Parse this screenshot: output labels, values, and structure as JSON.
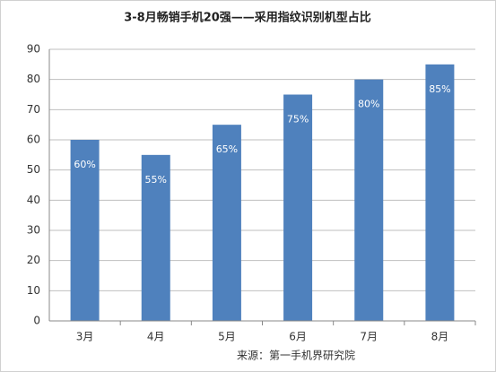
{
  "chart_data": {
    "type": "bar",
    "title": "3-8月畅销手机20强——采用指纹识别机型占比",
    "categories": [
      "3月",
      "4月",
      "5月",
      "6月",
      "7月",
      "8月"
    ],
    "values": [
      60,
      55,
      65,
      75,
      80,
      85
    ],
    "value_labels": [
      "60%",
      "55%",
      "65%",
      "75%",
      "80%",
      "85%"
    ],
    "color": "#4f81bd",
    "ylim": [
      0,
      90
    ],
    "yticks": [
      0,
      10,
      20,
      30,
      40,
      50,
      60,
      70,
      80,
      90
    ],
    "grid": true,
    "source": "来源：第一手机界研究院"
  }
}
